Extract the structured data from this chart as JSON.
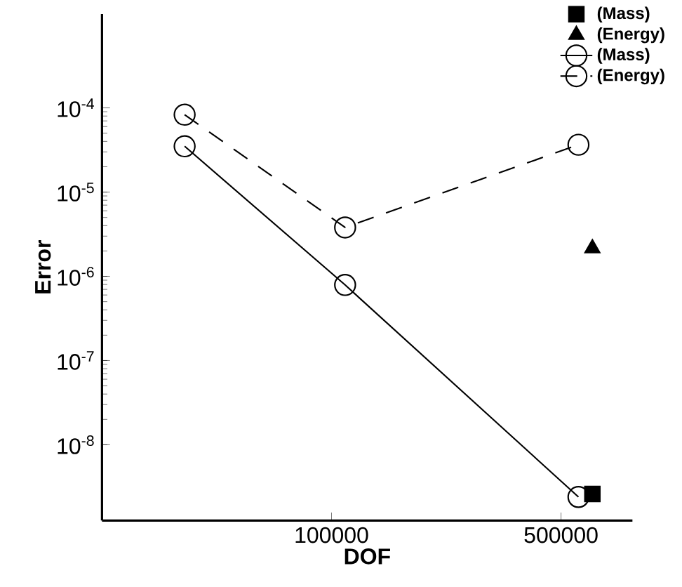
{
  "chart_data": {
    "type": "line",
    "xlabel": "DOF",
    "ylabel": "Error",
    "log": "xy",
    "legend": "top right",
    "xlim": [
      20000,
      825000
    ],
    "ylim": [
      1.26e-09,
      0.0013
    ],
    "xticks": [
      100000,
      500000
    ],
    "yticks": [
      {
        "value": 1e-08,
        "label": "10$^{-8}$"
      },
      {
        "value": 1e-07,
        "label": "10$^{-7}$"
      },
      {
        "value": 1e-06,
        "label": "10$^{-6}$"
      },
      {
        "value": 1e-05,
        "label": "10$^{-5}$"
      },
      {
        "value": 0.0001,
        "label": "10$^{-4}$"
      }
    ],
    "series": [
      {
        "name": "(Mass)",
        "type": "scatter",
        "marker": "square",
        "color": "#000000",
        "x": [
          623000
        ],
        "values": [
          2.6e-09
        ]
      },
      {
        "name": "(Energy)",
        "type": "scatter",
        "marker": "triangle",
        "color": "#000000",
        "x": [
          623000
        ],
        "values": [
          2.15e-06
        ]
      },
      {
        "name": "(Mass)",
        "marker": "circle",
        "line_style": "solid",
        "color": "#000000",
        "x": [
          35700,
          110000,
          565000
        ],
        "values": [
          3.5e-05,
          7.9e-07,
          2.4e-09
        ]
      },
      {
        "name": "(Energy)",
        "marker": "circle",
        "line_style": "dashed",
        "color": "#000000",
        "x": [
          35700,
          110000,
          565000
        ],
        "values": [
          8.3e-05,
          3.8e-06,
          3.65e-05
        ]
      }
    ]
  }
}
